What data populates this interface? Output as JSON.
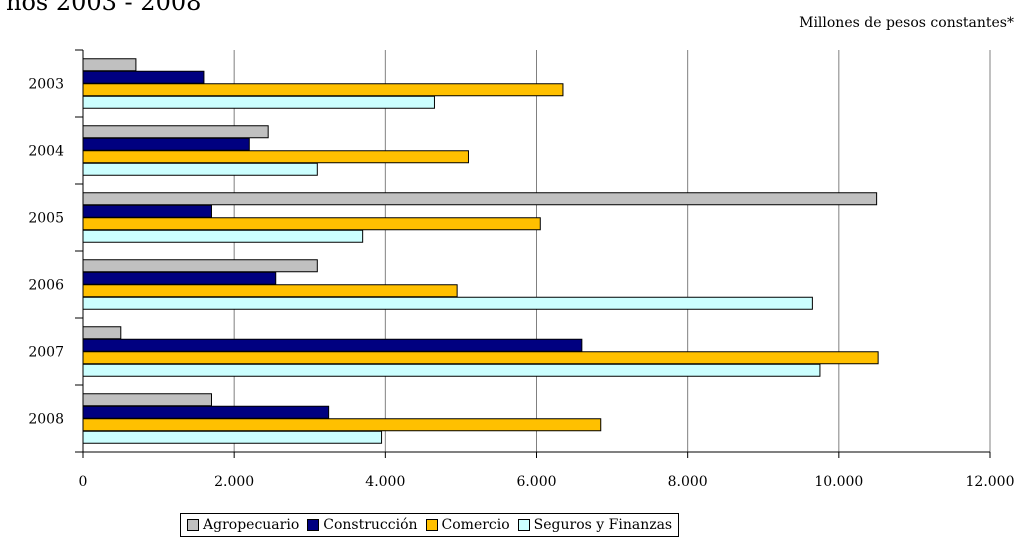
{
  "title": "ños 2003 - 2008",
  "units_note": "Millones de pesos constantes*",
  "chart_data": {
    "type": "bar",
    "orientation": "horizontal",
    "categories": [
      "2003",
      "2004",
      "2005",
      "2006",
      "2007",
      "2008"
    ],
    "series": [
      {
        "name": "Agropecuario",
        "color": "#c0c0c0",
        "values": [
          700,
          2450,
          10500,
          3100,
          500,
          1700
        ]
      },
      {
        "name": "Construcción",
        "color": "#000080",
        "values": [
          1600,
          2200,
          1700,
          2550,
          6600,
          3250
        ]
      },
      {
        "name": "Comercio",
        "color": "#ffc000",
        "values": [
          6350,
          5100,
          6050,
          4950,
          10520,
          6850
        ]
      },
      {
        "name": "Seguros y Finanzas",
        "color": "#ccffff",
        "values": [
          4650,
          3100,
          3700,
          9650,
          9750,
          3950
        ]
      }
    ],
    "xlim": [
      0,
      12000
    ],
    "x_ticks": [
      "0",
      "2.000",
      "4.000",
      "6.000",
      "8.000",
      "10.000",
      "12.000"
    ],
    "grid": true,
    "legend_position": "bottom"
  }
}
